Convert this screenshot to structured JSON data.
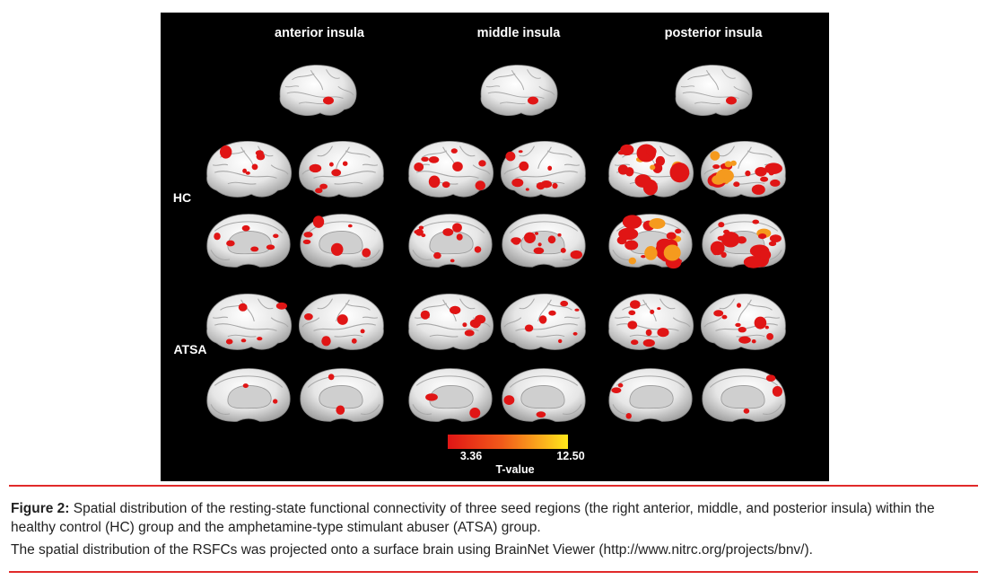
{
  "figure": {
    "columns": [
      "anterior insula",
      "middle insula",
      "posterior insula"
    ],
    "rows": [
      "HC",
      "ATSA"
    ],
    "colorbar": {
      "min": "3.36",
      "max": "12.50",
      "label": "T-value"
    }
  },
  "caption": {
    "label": "Figure 2:",
    "text": " Spatial distribution of the resting-state functional connectivity of three seed regions (the right anterior, middle, and posterior insula) within the healthy control (HC) group and the amphetamine-type stimulant abuser (ATSA) group.",
    "note": "The spatial distribution of the RSFCs was projected onto a surface brain using BrainNet Viewer (http://www.nitrc.org/projects/bnv/)."
  },
  "colors": {
    "accent_rule": "#e12a2a",
    "figure_bg": "#000000",
    "activation_low": "#e01515",
    "activation_high": "#ffe81a"
  }
}
